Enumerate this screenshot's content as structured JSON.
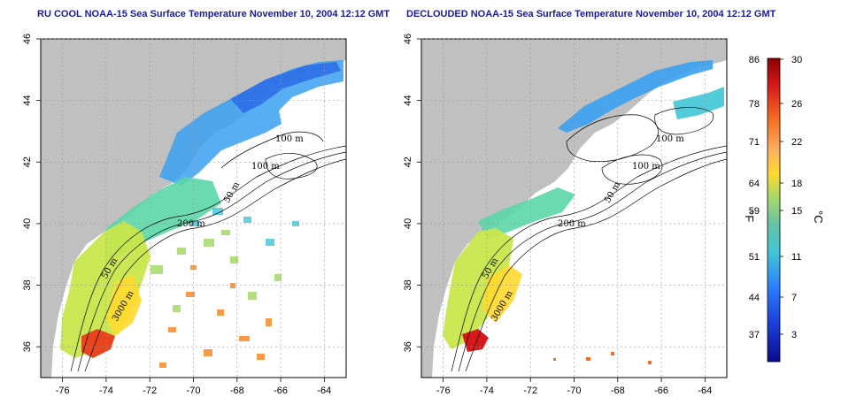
{
  "panels": [
    {
      "title": "RU COOL NOAA-15 Sea Surface Temperature November 10, 2004 12:12 GMT",
      "contour_labels": [
        "100 m",
        "100 m",
        "50 m",
        "200 m",
        "50 m",
        "3000 m"
      ]
    },
    {
      "title": "DECLOUDED NOAA-15 Sea Surface Temperature November 10, 2004 12:12 GMT",
      "contour_labels": [
        "100 m",
        "100 m",
        "50 m",
        "200 m",
        "50 m",
        "3000 m"
      ]
    }
  ],
  "axes": {
    "lon_ticks": [
      "-76",
      "-74",
      "-72",
      "-70",
      "-68",
      "-66",
      "-64"
    ],
    "lat_ticks": [
      "36",
      "38",
      "40",
      "42",
      "44",
      "46"
    ]
  },
  "colorbar": {
    "fahrenheit_ticks": [
      "86",
      "78",
      "71",
      "64",
      "59",
      "51",
      "44",
      "37"
    ],
    "celsius_ticks": [
      "30",
      "26",
      "22",
      "18",
      "15",
      "11",
      "7",
      "3"
    ],
    "unit_f": "°F",
    "unit_c": "°C",
    "colors": [
      "#8b0000",
      "#d7191c",
      "#f46d21",
      "#fdae61",
      "#ffd92f",
      "#d9ef3b",
      "#a6d96a",
      "#66c2a5",
      "#3fc6d6",
      "#2c7bff",
      "#1a3cd6",
      "#0b0b8f"
    ]
  },
  "colors": {
    "land": "#c0c0c0",
    "title": "#1a1aa0"
  }
}
